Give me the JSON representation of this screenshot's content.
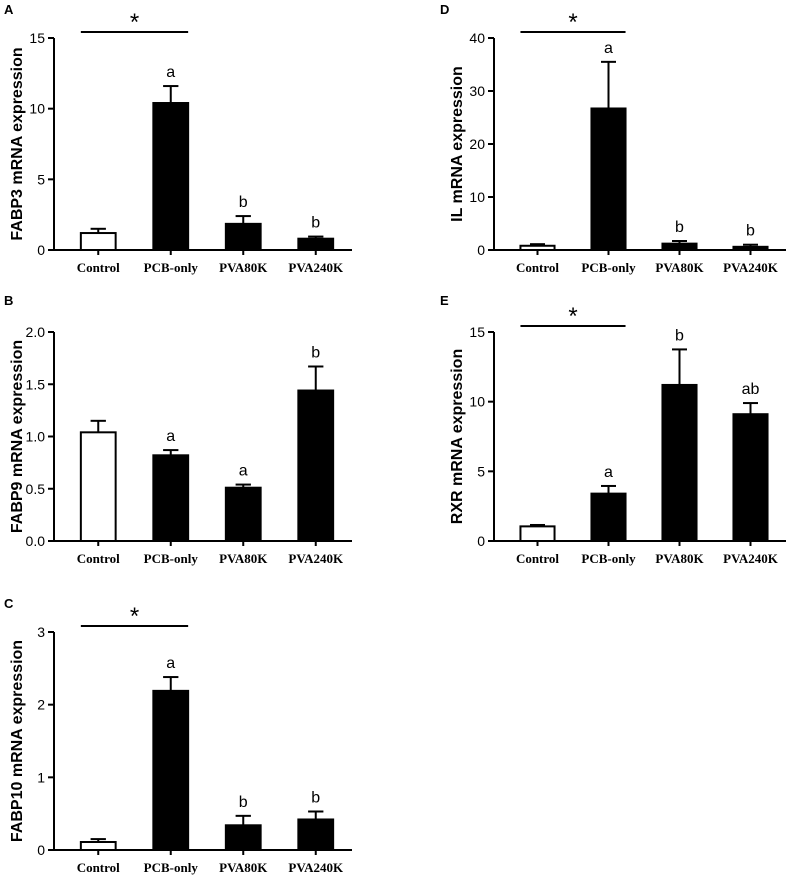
{
  "chart_data": [
    {
      "panel": "A",
      "type": "bar",
      "ylabel": "FABP3 mRNA expression",
      "categories": [
        "Control",
        "PCB-only",
        "PVA80K",
        "PVA240K"
      ],
      "values": [
        1.2,
        10.4,
        1.85,
        0.8
      ],
      "errors": [
        0.3,
        1.2,
        0.55,
        0.15
      ],
      "fills": [
        "#ffffff",
        "#000000",
        "#000000",
        "#000000"
      ],
      "significance": [
        "",
        "a",
        "b",
        "b"
      ],
      "ylim": [
        0,
        15
      ],
      "yticks": [
        0,
        5,
        10,
        15
      ],
      "yticklabels": [
        "0",
        "5",
        "10",
        "15"
      ],
      "star": {
        "from": 0,
        "to": 1,
        "label": "*"
      }
    },
    {
      "panel": "B",
      "type": "bar",
      "ylabel": "FABP9 mRNA expression",
      "categories": [
        "Control",
        "PCB-only",
        "PVA80K",
        "PVA240K"
      ],
      "values": [
        1.04,
        0.82,
        0.51,
        1.44
      ],
      "errors": [
        0.11,
        0.05,
        0.03,
        0.23
      ],
      "fills": [
        "#ffffff",
        "#000000",
        "#000000",
        "#000000"
      ],
      "significance": [
        "",
        "a",
        "a",
        "b"
      ],
      "ylim": [
        0,
        2.0
      ],
      "yticks": [
        0,
        0.5,
        1.0,
        1.5,
        2.0
      ],
      "yticklabels": [
        "0.0",
        "0.5",
        "1.0",
        "1.5",
        "2.0"
      ],
      "star": null
    },
    {
      "panel": "C",
      "type": "bar",
      "ylabel": "FABP10 mRNA expression",
      "categories": [
        "Control",
        "PCB-only",
        "PVA80K",
        "PVA240K"
      ],
      "values": [
        0.11,
        2.19,
        0.34,
        0.42
      ],
      "errors": [
        0.04,
        0.19,
        0.13,
        0.11
      ],
      "fills": [
        "#ffffff",
        "#000000",
        "#000000",
        "#000000"
      ],
      "significance": [
        "",
        "a",
        "b",
        "b"
      ],
      "ylim": [
        0,
        3
      ],
      "yticks": [
        0,
        1,
        2,
        3
      ],
      "yticklabels": [
        "0",
        "1",
        "2",
        "3"
      ],
      "star": {
        "from": 0,
        "to": 1,
        "label": "*"
      }
    },
    {
      "panel": "D",
      "type": "bar",
      "ylabel": "IL mRNA expression",
      "categories": [
        "Control",
        "PCB-only",
        "PVA80K",
        "PVA240K"
      ],
      "values": [
        0.8,
        26.7,
        1.2,
        0.6
      ],
      "errors": [
        0.3,
        8.8,
        0.5,
        0.4
      ],
      "fills": [
        "#ffffff",
        "#000000",
        "#000000",
        "#000000"
      ],
      "significance": [
        "",
        "a",
        "b",
        "b"
      ],
      "ylim": [
        0,
        40
      ],
      "yticks": [
        0,
        10,
        20,
        30,
        40
      ],
      "yticklabels": [
        "0",
        "10",
        "20",
        "30",
        "40"
      ],
      "star": {
        "from": 0,
        "to": 1,
        "label": "*"
      }
    },
    {
      "panel": "E",
      "type": "bar",
      "ylabel": "RXR mRNA expression",
      "categories": [
        "Control",
        "PCB-only",
        "PVA80K",
        "PVA240K"
      ],
      "values": [
        1.05,
        3.4,
        11.2,
        9.1
      ],
      "errors": [
        0.1,
        0.55,
        2.55,
        0.8
      ],
      "fills": [
        "#ffffff",
        "#000000",
        "#000000",
        "#000000"
      ],
      "significance": [
        "",
        "a",
        "b",
        "ab"
      ],
      "ylim": [
        0,
        15
      ],
      "yticks": [
        0,
        5,
        10,
        15
      ],
      "yticklabels": [
        "0",
        "5",
        "10",
        "15"
      ],
      "star": {
        "from": 0,
        "to": 1,
        "label": "*"
      }
    }
  ]
}
